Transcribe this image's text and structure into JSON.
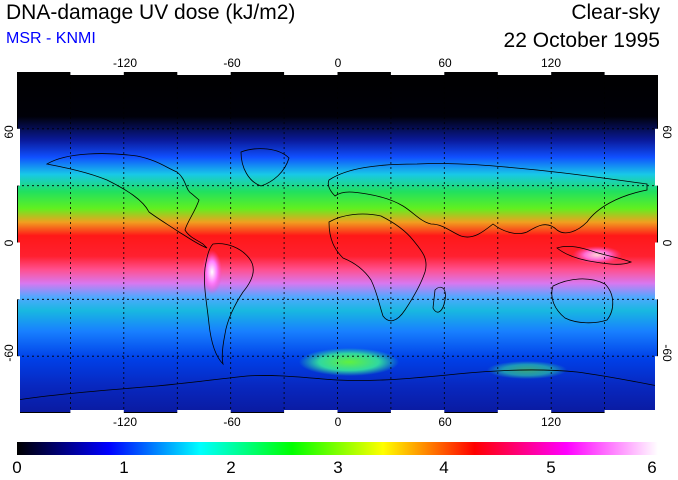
{
  "header": {
    "title": "DNA-damage UV dose (kJ/m2)",
    "source": "MSR - KNMI",
    "sky_condition": "Clear-sky",
    "date": "22 October 1995"
  },
  "map": {
    "projection": "equirectangular",
    "lon_range": [
      -180,
      180
    ],
    "lat_range": [
      -90,
      90
    ],
    "lon_ticks": [
      -120,
      -60,
      0,
      60,
      120
    ],
    "lat_ticks": [
      60,
      0,
      -60
    ],
    "lon_labels": [
      "-120",
      "-60",
      "0",
      "60",
      "120"
    ],
    "lat_labels": [
      "60",
      "0",
      "-60"
    ],
    "grid": "dotted",
    "grid_lon": [
      -150,
      -120,
      -90,
      -60,
      -30,
      0,
      30,
      60,
      90,
      120,
      150
    ],
    "grid_lat": [
      60,
      30,
      -30,
      -60
    ],
    "colors": {
      "polar_dark": "#000000",
      "low": "#0000ff",
      "mid": "#00ff00",
      "high": "#ff0000",
      "max": "#ffffff"
    }
  },
  "colorbar": {
    "min": 0,
    "max": 6,
    "tick_labels": [
      "0",
      "1",
      "2",
      "3",
      "4",
      "5",
      "6"
    ],
    "stops": [
      "#000000",
      "#0000ff",
      "#00ffff",
      "#00ff00",
      "#ffff00",
      "#ff0000",
      "#ff00ff",
      "#ffffff"
    ]
  }
}
